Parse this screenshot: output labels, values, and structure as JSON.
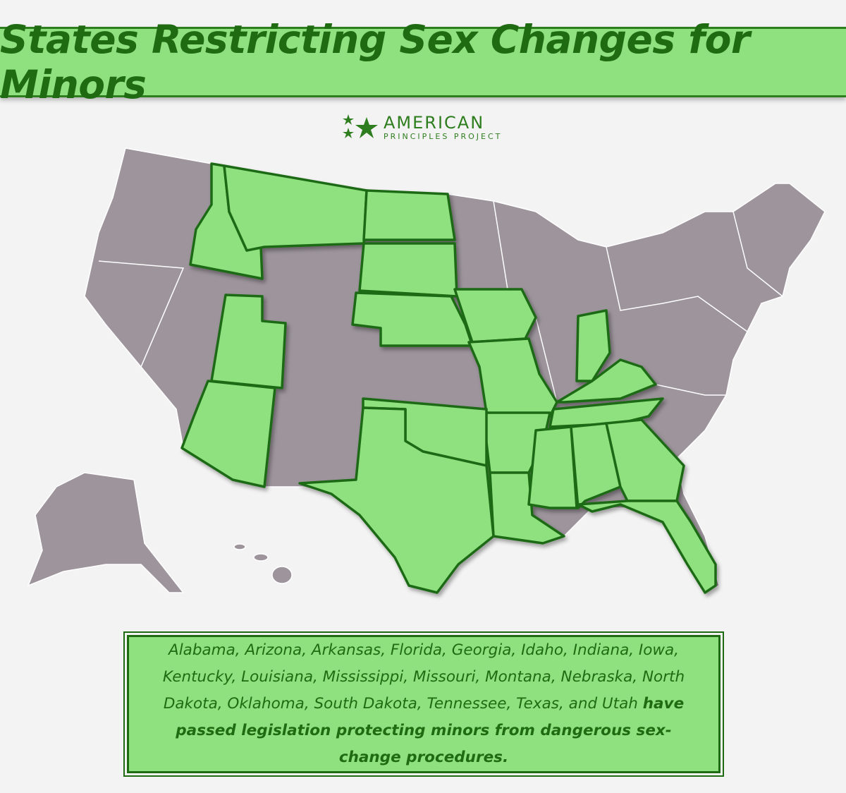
{
  "header": {
    "title": "States Restricting Sex Changes for Minors"
  },
  "logo": {
    "line1": "AMERICAN",
    "line2": "PRINCIPLES PROJECT"
  },
  "caption": {
    "text": "Alabama, Arizona, Arkansas, Florida, Georgia, Idaho, Indiana, Iowa, Kentucky, Louisiana, Mississippi, Missouri, Montana, Nebraska, North Dakota, Oklahoma, South Dakota, Tennessee, Texas, and Utah",
    "emphasis": "have passed legislation protecting minors from dangerous sex-change procedures."
  }
}
